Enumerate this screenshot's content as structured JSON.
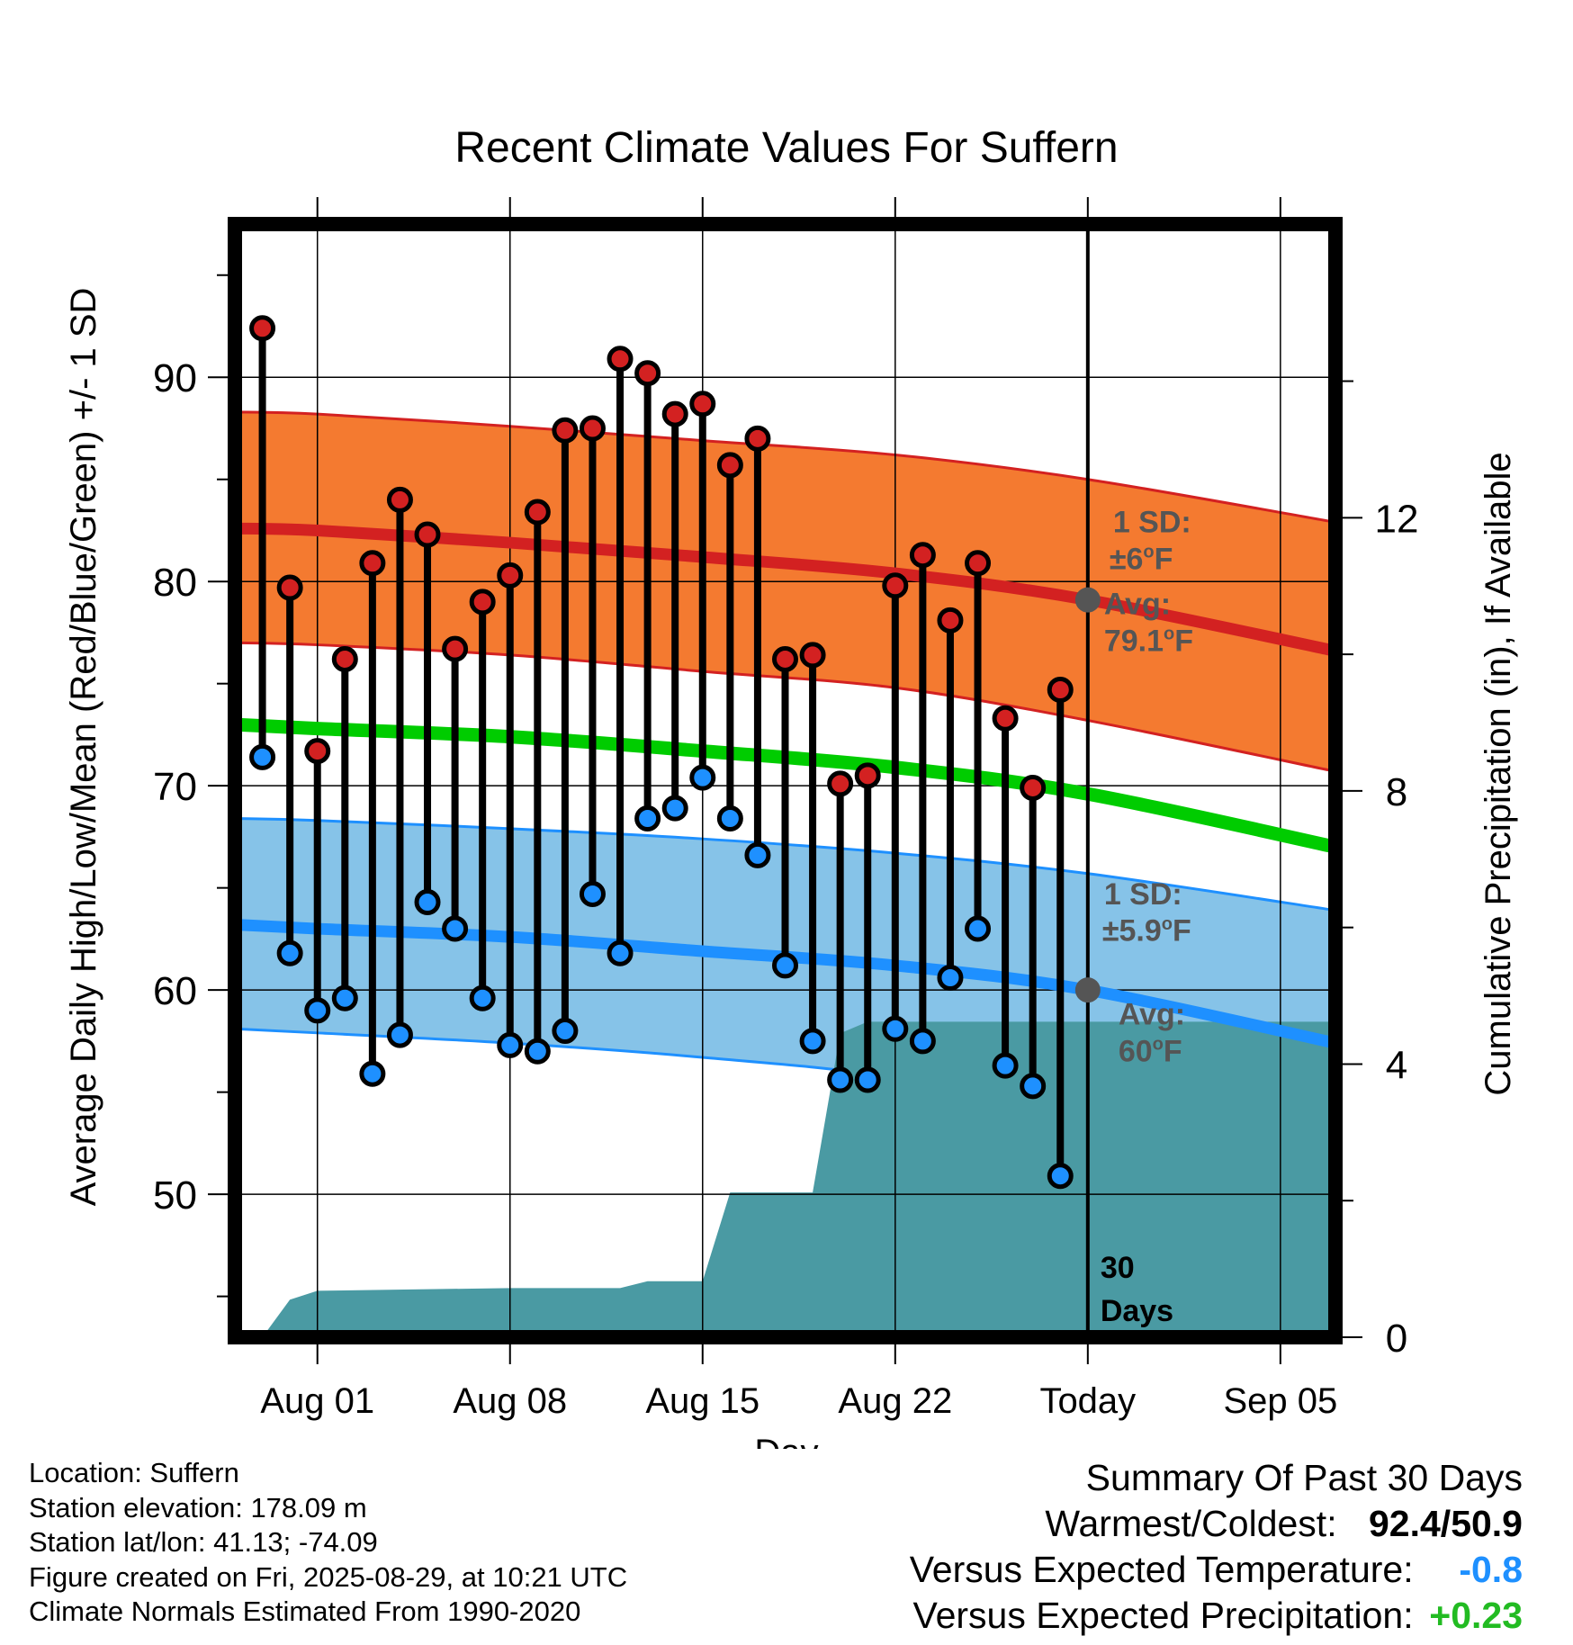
{
  "chart_data": {
    "type": "line",
    "title": "Recent Climate Values For Suffern",
    "xlabel": "Day",
    "ylabel": "Average Daily High/Low/Mean (Red/Blue/Green) +/- 1 SD",
    "y2label": "Cumulative Precipitation (in), If Available",
    "x_range": [
      "2025-07-29",
      "2025-09-07"
    ],
    "ylim": [
      43,
      97.5
    ],
    "y2lim": [
      0,
      16.3
    ],
    "x_ticks": [
      {
        "date": "2025-08-01",
        "label": "Aug 01"
      },
      {
        "date": "2025-08-08",
        "label": "Aug 08"
      },
      {
        "date": "2025-08-15",
        "label": "Aug 15"
      },
      {
        "date": "2025-08-22",
        "label": "Aug 22"
      },
      {
        "date": "2025-08-29",
        "label": "Today"
      },
      {
        "date": "2025-09-05",
        "label": "Sep 05"
      }
    ],
    "y_ticks": [
      50,
      60,
      70,
      80,
      90
    ],
    "y2_ticks": [
      0,
      4,
      8,
      12
    ],
    "grid": true,
    "today": "2025-08-29",
    "today_window_label": "30 Days",
    "daily": [
      {
        "date": "2025-07-30",
        "high": 92.4,
        "low": 71.4
      },
      {
        "date": "2025-07-31",
        "high": 79.7,
        "low": 61.8
      },
      {
        "date": "2025-08-01",
        "high": 71.7,
        "low": 59.0
      },
      {
        "date": "2025-08-02",
        "high": 76.2,
        "low": 59.6
      },
      {
        "date": "2025-08-03",
        "high": 80.9,
        "low": 55.9
      },
      {
        "date": "2025-08-04",
        "high": 84.0,
        "low": 57.8
      },
      {
        "date": "2025-08-05",
        "high": 82.3,
        "low": 64.3
      },
      {
        "date": "2025-08-06",
        "high": 76.7,
        "low": 63.0
      },
      {
        "date": "2025-08-07",
        "high": 79.0,
        "low": 59.6
      },
      {
        "date": "2025-08-08",
        "high": 80.3,
        "low": 57.3
      },
      {
        "date": "2025-08-09",
        "high": 83.4,
        "low": 57.0
      },
      {
        "date": "2025-08-10",
        "high": 87.4,
        "low": 58.0
      },
      {
        "date": "2025-08-11",
        "high": 87.5,
        "low": 64.7
      },
      {
        "date": "2025-08-12",
        "high": 90.9,
        "low": 61.8
      },
      {
        "date": "2025-08-13",
        "high": 90.2,
        "low": 68.4
      },
      {
        "date": "2025-08-14",
        "high": 88.2,
        "low": 68.9
      },
      {
        "date": "2025-08-15",
        "high": 88.7,
        "low": 70.4
      },
      {
        "date": "2025-08-16",
        "high": 85.7,
        "low": 68.4
      },
      {
        "date": "2025-08-17",
        "high": 87.0,
        "low": 66.6
      },
      {
        "date": "2025-08-18",
        "high": 76.2,
        "low": 61.2
      },
      {
        "date": "2025-08-19",
        "high": 76.4,
        "low": 57.5
      },
      {
        "date": "2025-08-20",
        "high": 70.1,
        "low": 55.6
      },
      {
        "date": "2025-08-21",
        "high": 70.5,
        "low": 55.6
      },
      {
        "date": "2025-08-22",
        "high": 79.8,
        "low": 58.1
      },
      {
        "date": "2025-08-23",
        "high": 81.3,
        "low": 57.5
      },
      {
        "date": "2025-08-24",
        "high": 78.1,
        "low": 60.6
      },
      {
        "date": "2025-08-25",
        "high": 80.9,
        "low": 63.0
      },
      {
        "date": "2025-08-26",
        "high": 73.3,
        "low": 56.3
      },
      {
        "date": "2025-08-27",
        "high": 69.9,
        "low": 55.3
      },
      {
        "date": "2025-08-28",
        "high": 74.7,
        "low": 50.9
      }
    ],
    "normals": {
      "dates": [
        "2025-07-29",
        "2025-08-01",
        "2025-08-08",
        "2025-08-15",
        "2025-08-22",
        "2025-08-29",
        "2025-09-07"
      ],
      "high_avg": [
        82.6,
        82.5,
        81.9,
        81.2,
        80.4,
        79.1,
        76.6
      ],
      "high_upper": [
        88.3,
        88.2,
        87.6,
        86.9,
        86.2,
        85.0,
        82.9
      ],
      "high_lower": [
        77.0,
        76.9,
        76.4,
        75.6,
        74.8,
        73.2,
        70.7
      ],
      "mean_avg": [
        73.0,
        72.8,
        72.4,
        71.7,
        70.9,
        69.6,
        67.0
      ],
      "low_avg": [
        63.2,
        63.0,
        62.6,
        61.9,
        61.2,
        60.0,
        57.4
      ],
      "low_upper": [
        68.4,
        68.3,
        67.9,
        67.4,
        66.7,
        65.7,
        63.9
      ],
      "low_lower": [
        58.1,
        57.9,
        57.4,
        56.7,
        55.7,
        53.6,
        50.7
      ]
    },
    "high_sd_label": "1 SD:",
    "high_sd_value": "±6°F",
    "high_avg_label": "Avg:",
    "high_avg_value": "79.1°F",
    "low_sd_label": "1 SD:",
    "low_sd_value": "±5.9°F",
    "low_avg_label": "Avg:",
    "low_avg_value": "60°F",
    "precip_cumulative": {
      "dates": [
        "2025-07-29",
        "2025-07-30",
        "2025-07-31",
        "2025-08-01",
        "2025-08-08",
        "2025-08-12",
        "2025-08-13",
        "2025-08-15",
        "2025-08-16",
        "2025-08-19",
        "2025-08-20",
        "2025-08-21",
        "2025-09-07"
      ],
      "values": [
        0.0,
        0.0,
        0.55,
        0.68,
        0.72,
        0.72,
        0.82,
        0.82,
        2.12,
        2.12,
        4.45,
        4.62,
        4.62
      ]
    },
    "colors": {
      "high": "#d32121",
      "high_band": "#f47a30",
      "low": "#1e90ff",
      "low_band": "#86c3e8",
      "mean": "#00cc00",
      "precip": "#4a9aa3",
      "marker_high": "#d32121",
      "marker_low": "#1e90ff",
      "avg_marker": "#555555",
      "annotation_text": "#555555"
    }
  },
  "footer": {
    "location": "Location: Suffern",
    "elevation": "Station elevation: 178.09 m",
    "latlon": "Station lat/lon: 41.13; -74.09",
    "created": "Figure created on Fri, 2025-08-29, at 10:21 UTC",
    "normals": "Climate Normals Estimated From 1990-2020"
  },
  "summary": {
    "title": "Summary Of Past 30 Days",
    "warm_cold_label": "Warmest/Coldest:",
    "warm_cold_value": "92.4/50.9",
    "temp_label": "Versus Expected Temperature:",
    "temp_value": "-0.8",
    "temp_color": "#1e90ff",
    "precip_label": "Versus Expected Precipitation:",
    "precip_value": "+0.23",
    "precip_color": "#22bb22"
  }
}
